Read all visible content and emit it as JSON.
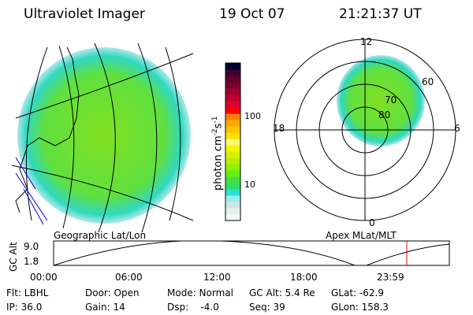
{
  "header": {
    "title": "Ultraviolet Imager",
    "date": "19 Oct 07",
    "time": "21:21:37 UT"
  },
  "colorbar": {
    "label": "photon cm",
    "exp1": "-2",
    "s": "s",
    "exp2": "-1",
    "ticks": [
      "100",
      "10"
    ],
    "colors": [
      "#f4f8f6",
      "#e6f2ee",
      "#d0e4e2",
      "#98eef2",
      "#2de0d4",
      "#2ee06a",
      "#44e040",
      "#62f010",
      "#90f000",
      "#b6f000",
      "#d8f000",
      "#f4f800",
      "#fcf870",
      "#fce000",
      "#fcc400",
      "#fca800",
      "#fc8000",
      "#fc0000",
      "#e00030",
      "#c00030",
      "#a00030",
      "#800030",
      "#600030",
      "#400030",
      "#000030"
    ]
  },
  "left_panel": {
    "label": "Geographic Lat/Lon"
  },
  "right_panel": {
    "label": "Apex MLat/MLT",
    "mlt_labels": [
      "12",
      "18",
      "6",
      "0"
    ],
    "lat_labels": [
      "80",
      "70",
      "60"
    ]
  },
  "timeline": {
    "ylabel": "GC Alt",
    "yticks": [
      "9.0",
      "1.8"
    ],
    "xticks": [
      "00:00",
      "06:00",
      "12:00",
      "18:00",
      "23:59"
    ],
    "marker_color": "#e00000"
  },
  "info": {
    "row1": [
      "Flt: LBHL",
      "Door: Open",
      "Mode: Normal",
      "GC Alt: 5.4 Re",
      "GLat: -62.9"
    ],
    "row2": [
      "IP: 36.0",
      "Gain: 14",
      "Dsp:    -4.0",
      "Seq: 39",
      "GLon: 158.3"
    ]
  }
}
